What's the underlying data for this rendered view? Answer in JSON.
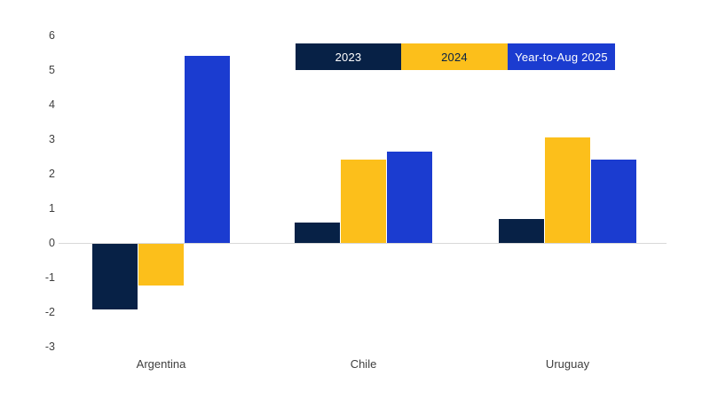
{
  "chart_data": {
    "type": "bar",
    "title": "",
    "xlabel": "",
    "ylabel": "",
    "categories": [
      "Argentina",
      "Chile",
      "Uruguay"
    ],
    "series": [
      {
        "name": "2023",
        "color": "#072146",
        "label_text_color": "#ffffff",
        "values": [
          -1.9,
          0.6,
          0.7
        ]
      },
      {
        "name": "2024",
        "color": "#fcbf1b",
        "label_text_color": "#072146",
        "values": [
          -1.2,
          2.4,
          3.05
        ]
      },
      {
        "name": "Year-to-Aug 2025",
        "color": "#1b3cd0",
        "label_text_color": "#ffffff",
        "values": [
          5.4,
          2.65,
          2.4
        ]
      }
    ],
    "ylim": [
      -3,
      6
    ],
    "yticks": [
      6,
      5,
      4,
      3,
      2,
      1,
      0,
      -1,
      -2,
      -3
    ],
    "grid": "zero-line-only",
    "zero_line_color": "#d9d9d9",
    "tick_label_color": "#3f3f3f",
    "background_color": "#ffffff",
    "legend_position": "top-center-right",
    "legend_style": "solid-color-blocks"
  }
}
